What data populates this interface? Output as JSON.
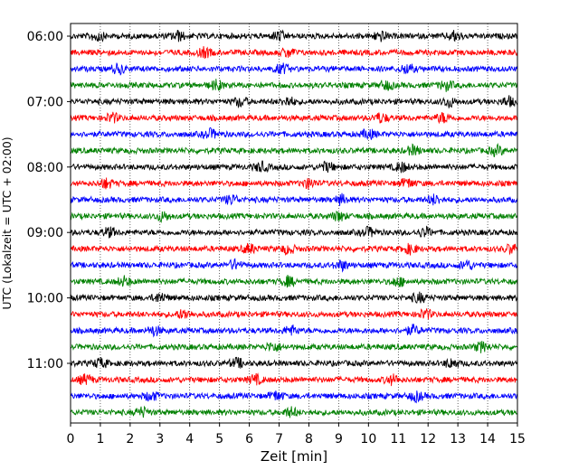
{
  "chart_data": {
    "type": "line",
    "subtype": "helicorder",
    "xlabel": "Zeit  [min]",
    "ylabel": "UTC (Lokalzeit = UTC + 02:00)",
    "xlim": [
      0,
      15
    ],
    "x_ticks": [
      "0",
      "1",
      "2",
      "3",
      "4",
      "5",
      "6",
      "7",
      "8",
      "9",
      "10",
      "11",
      "12",
      "13",
      "14",
      "15"
    ],
    "y_ticks": [
      "06:00",
      "07:00",
      "08:00",
      "09:00",
      "10:00",
      "11:00"
    ],
    "minutes_per_line": 15,
    "start_time": "06:00",
    "line_colors": [
      "#000000",
      "#ff0000",
      "#0000ff",
      "#008000"
    ],
    "grid": "vertical dotted lines at each minute",
    "traces": [
      {
        "time": "06:00",
        "color": "#000000",
        "events": [
          0.9,
          3.6,
          7.0,
          10.4,
          12.9
        ]
      },
      {
        "time": "06:15",
        "color": "#ff0000",
        "events": [
          4.5,
          7.3
        ]
      },
      {
        "time": "06:30",
        "color": "#0000ff",
        "events": [
          1.6,
          7.1,
          11.3
        ]
      },
      {
        "time": "06:45",
        "color": "#008000",
        "events": [
          4.9,
          10.6,
          12.6
        ]
      },
      {
        "time": "07:00",
        "color": "#000000",
        "events": [
          5.7,
          7.3,
          12.7,
          14.7
        ]
      },
      {
        "time": "07:15",
        "color": "#ff0000",
        "events": [
          1.4,
          10.4,
          12.5
        ]
      },
      {
        "time": "07:30",
        "color": "#0000ff",
        "events": [
          4.7,
          10.0
        ]
      },
      {
        "time": "07:45",
        "color": "#008000",
        "events": [
          11.5,
          14.3
        ]
      },
      {
        "time": "08:00",
        "color": "#000000",
        "events": [
          6.4,
          8.6,
          11.1
        ]
      },
      {
        "time": "08:15",
        "color": "#ff0000",
        "events": [
          1.2,
          8.0,
          11.3
        ]
      },
      {
        "time": "08:30",
        "color": "#0000ff",
        "events": [
          5.4,
          9.1,
          12.2
        ]
      },
      {
        "time": "08:45",
        "color": "#008000",
        "events": [
          3.1,
          9.0
        ]
      },
      {
        "time": "09:00",
        "color": "#000000",
        "events": [
          1.3,
          10.0,
          11.9
        ]
      },
      {
        "time": "09:15",
        "color": "#ff0000",
        "events": [
          6.0,
          7.3,
          11.4,
          14.8
        ]
      },
      {
        "time": "09:30",
        "color": "#0000ff",
        "events": [
          5.5,
          9.1,
          13.3
        ]
      },
      {
        "time": "09:45",
        "color": "#008000",
        "events": [
          1.8,
          7.3,
          11.0
        ]
      },
      {
        "time": "10:00",
        "color": "#000000",
        "events": [
          3.0,
          11.7
        ]
      },
      {
        "time": "10:15",
        "color": "#ff0000",
        "events": [
          3.8,
          11.9
        ]
      },
      {
        "time": "10:30",
        "color": "#0000ff",
        "events": [
          2.8,
          7.4,
          11.5
        ]
      },
      {
        "time": "10:45",
        "color": "#008000",
        "events": [
          6.8,
          13.8
        ]
      },
      {
        "time": "11:00",
        "color": "#000000",
        "events": [
          1.0,
          5.6,
          12.8
        ]
      },
      {
        "time": "11:15",
        "color": "#ff0000",
        "events": [
          0.5,
          6.2,
          10.8
        ]
      },
      {
        "time": "11:30",
        "color": "#0000ff",
        "events": [
          2.7,
          6.9,
          11.6
        ]
      },
      {
        "time": "11:45",
        "color": "#008000",
        "events": [
          2.4,
          7.4
        ]
      }
    ]
  }
}
